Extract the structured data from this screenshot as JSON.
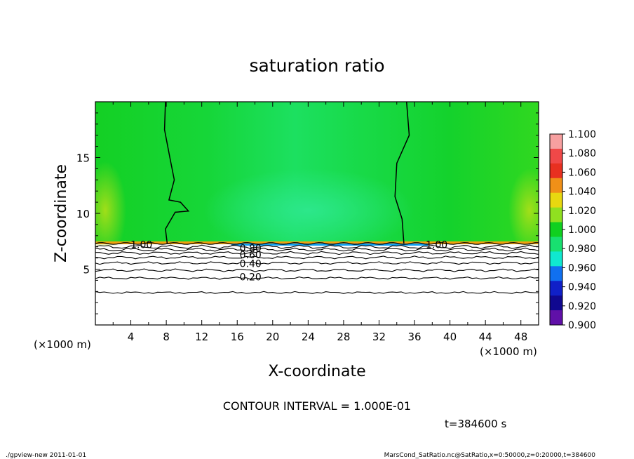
{
  "chart_data": {
    "type": "heatmap",
    "title": "saturation ratio",
    "xlabel": "X-coordinate",
    "ylabel": "Z-coordinate",
    "xunit": "(×1000 m)",
    "xunit_right": "(×1000 m)",
    "xlim": [
      0,
      50
    ],
    "ylim": [
      0,
      20
    ],
    "xticks": [
      4,
      8,
      12,
      16,
      20,
      24,
      28,
      32,
      36,
      40,
      44,
      48
    ],
    "yticks": [
      5,
      10,
      15
    ],
    "contour_interval_text": "CONTOUR INTERVAL = 1.000E-01",
    "time_text": "t=384600 s",
    "colorbar": {
      "levels": [
        "1.100",
        "1.080",
        "1.060",
        "1.040",
        "1.020",
        "1.000",
        "0.980",
        "0.960",
        "0.940",
        "0.920",
        "0.900"
      ],
      "colors": [
        "#f7a0a0",
        "#f04848",
        "#e83020",
        "#f09018",
        "#e8d810",
        "#90e020",
        "#10d020",
        "#18e070",
        "#10e8d0",
        "#1070f0",
        "#1020c8",
        "#100890",
        "#6010a8"
      ]
    },
    "contour_labels": [
      {
        "text": "1.00",
        "x": 5.2,
        "z": 7.2
      },
      {
        "text": "1.00",
        "x": 38.5,
        "z": 7.2
      },
      {
        "text": "0.80",
        "x": 17.5,
        "z": 6.9
      },
      {
        "text": "0.60",
        "x": 17.5,
        "z": 6.3
      },
      {
        "text": "0.40",
        "x": 17.5,
        "z": 5.5
      },
      {
        "text": "0.20",
        "x": 17.5,
        "z": 4.3
      }
    ]
  },
  "footer": {
    "left": "./gpview-new   2011-01-01",
    "right": "MarsCond_SatRatio.nc@SatRatio,x=0:50000,z=0:20000,t=384600"
  }
}
